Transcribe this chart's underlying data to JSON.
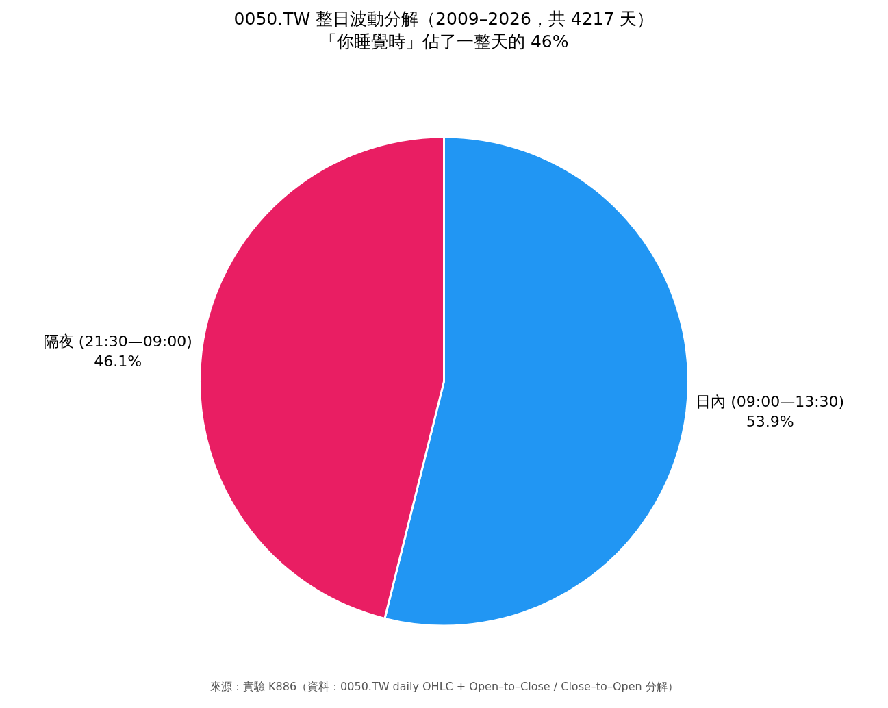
{
  "chart_data": {
    "type": "pie",
    "title": "0050.TW 整日波動分解（2009–2026，共 4217 天）",
    "subtitle": "「你睡覺時」佔了一整天的 46%",
    "categories": [
      "日內 (09:00—13:30)",
      "隔夜 (21:30—09:00)"
    ],
    "values": [
      53.9,
      46.1
    ],
    "value_labels": [
      "53.9%",
      "46.1%"
    ],
    "colors": [
      "#2196f3",
      "#e91e63"
    ],
    "annotations": [
      "來源：實驗 K886（資料：0050.TW daily OHLC + Open–to–Close / Close–to–Open 分解）"
    ]
  }
}
